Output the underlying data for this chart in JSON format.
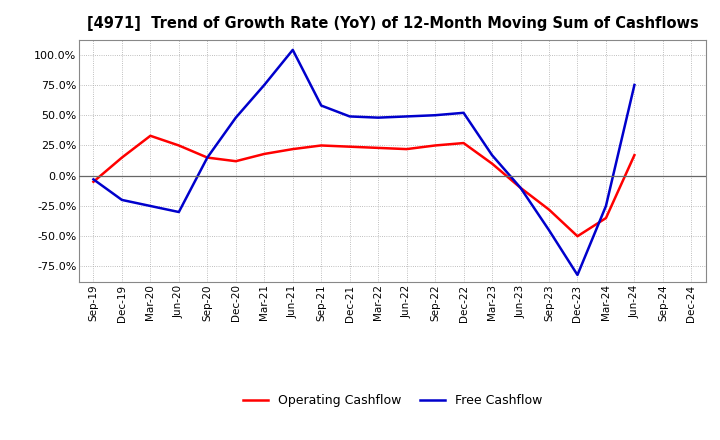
{
  "title": "[4971]  Trend of Growth Rate (YoY) of 12-Month Moving Sum of Cashflows",
  "x_labels": [
    "Sep-19",
    "Dec-19",
    "Mar-20",
    "Jun-20",
    "Sep-20",
    "Dec-20",
    "Mar-21",
    "Jun-21",
    "Sep-21",
    "Dec-21",
    "Mar-22",
    "Jun-22",
    "Sep-22",
    "Dec-22",
    "Mar-23",
    "Jun-23",
    "Sep-23",
    "Dec-23",
    "Mar-24",
    "Jun-24",
    "Sep-24",
    "Dec-24"
  ],
  "operating_cashflow": [
    -0.05,
    0.15,
    0.33,
    0.25,
    0.15,
    0.12,
    0.18,
    0.22,
    0.25,
    0.24,
    0.23,
    0.22,
    0.25,
    0.27,
    0.1,
    -0.1,
    -0.28,
    -0.5,
    -0.35,
    0.17,
    null,
    null
  ],
  "free_cashflow": [
    -0.03,
    -0.2,
    -0.25,
    -0.3,
    0.15,
    0.48,
    0.75,
    1.04,
    0.58,
    0.49,
    0.48,
    0.49,
    0.5,
    0.52,
    0.17,
    -0.1,
    -0.45,
    -0.82,
    -0.25,
    0.75,
    null,
    null
  ],
  "ylim": [
    -0.875,
    1.125
  ],
  "yticks": [
    -0.75,
    -0.5,
    -0.25,
    0.0,
    0.25,
    0.5,
    0.75,
    1.0
  ],
  "operating_color": "#ff0000",
  "free_color": "#0000cc",
  "background_color": "#ffffff",
  "grid_color": "#aaaaaa",
  "legend_labels": [
    "Operating Cashflow",
    "Free Cashflow"
  ]
}
